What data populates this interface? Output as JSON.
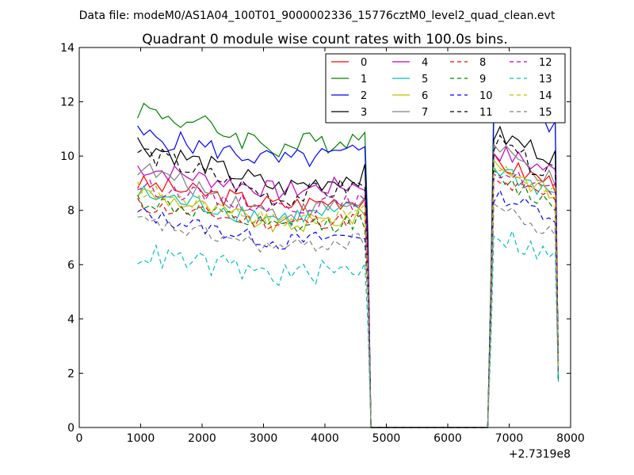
{
  "figure_header": "Data file: modeM0/AS1A04_100T01_9000002336_15776cztM0_level2_quad_clean.evt",
  "chart_data": {
    "type": "line",
    "title": "Quadrant 0 module wise count rates with 100.0s bins.",
    "xlabel": "",
    "ylabel": "",
    "x_offset_label": "+2.7319e8",
    "xlim": [
      0,
      8000
    ],
    "ylim": [
      0,
      14
    ],
    "xticks": [
      0,
      1000,
      2000,
      3000,
      4000,
      5000,
      6000,
      7000,
      8000
    ],
    "yticks": [
      0,
      2,
      4,
      6,
      8,
      10,
      12,
      14
    ],
    "grid": false,
    "legend_position": "top-right",
    "series": [
      {
        "name": "0",
        "color": "#ff0000",
        "dash": "solid",
        "level_a": 9.0,
        "level_b": 8.2,
        "level_c": 9.8,
        "level_d": 9.0,
        "noise": 0.35
      },
      {
        "name": "1",
        "color": "#008000",
        "dash": "solid",
        "level_a": 11.8,
        "level_b": 10.3,
        "level_c": 12.7,
        "level_d": 11.2,
        "noise": 0.45
      },
      {
        "name": "2",
        "color": "#0000ff",
        "dash": "solid",
        "level_a": 10.8,
        "level_b": 9.8,
        "level_c": 11.8,
        "level_d": 11.0,
        "noise": 0.4
      },
      {
        "name": "3",
        "color": "#000000",
        "dash": "solid",
        "level_a": 10.5,
        "level_b": 8.8,
        "level_c": 10.8,
        "level_d": 10.0,
        "noise": 0.4
      },
      {
        "name": "4",
        "color": "#bf00bf",
        "dash": "solid",
        "level_a": 9.6,
        "level_b": 8.7,
        "level_c": 10.2,
        "level_d": 9.4,
        "noise": 0.35
      },
      {
        "name": "5",
        "color": "#00bfbf",
        "dash": "solid",
        "level_a": 8.6,
        "level_b": 7.7,
        "level_c": 9.6,
        "level_d": 8.6,
        "noise": 0.4
      },
      {
        "name": "6",
        "color": "#bfbf00",
        "dash": "solid",
        "level_a": 8.7,
        "level_b": 7.4,
        "level_c": 9.8,
        "level_d": 8.5,
        "noise": 0.35
      },
      {
        "name": "7",
        "color": "#808080",
        "dash": "solid",
        "level_a": 9.6,
        "level_b": 7.8,
        "level_c": 10.3,
        "level_d": 9.0,
        "noise": 0.35
      },
      {
        "name": "8",
        "color": "#ff0000",
        "dash": "dash",
        "level_a": 8.2,
        "level_b": 7.5,
        "level_c": 9.0,
        "level_d": 8.5,
        "noise": 0.3
      },
      {
        "name": "9",
        "color": "#008000",
        "dash": "dash",
        "level_a": 8.4,
        "level_b": 7.3,
        "level_c": 9.2,
        "level_d": 8.2,
        "noise": 0.35
      },
      {
        "name": "10",
        "color": "#0000ff",
        "dash": "dash",
        "level_a": 7.9,
        "level_b": 6.8,
        "level_c": 8.6,
        "level_d": 7.8,
        "noise": 0.3
      },
      {
        "name": "11",
        "color": "#000000",
        "dash": "dash",
        "level_a": 10.2,
        "level_b": 8.4,
        "level_c": 10.5,
        "level_d": 9.2,
        "noise": 0.4
      },
      {
        "name": "12",
        "color": "#bf00bf",
        "dash": "dash",
        "level_a": 8.9,
        "level_b": 8.1,
        "level_c": 9.5,
        "level_d": 8.7,
        "noise": 0.3
      },
      {
        "name": "13",
        "color": "#00bfbf",
        "dash": "dash",
        "level_a": 6.4,
        "level_b": 5.6,
        "level_c": 7.2,
        "level_d": 6.2,
        "noise": 0.45
      },
      {
        "name": "14",
        "color": "#bfbf00",
        "dash": "dash",
        "level_a": 8.8,
        "level_b": 7.6,
        "level_c": 9.6,
        "level_d": 8.8,
        "noise": 0.3
      },
      {
        "name": "15",
        "color": "#808080",
        "dash": "dash",
        "level_a": 7.6,
        "level_b": 6.6,
        "level_c": 8.2,
        "level_d": 7.0,
        "noise": 0.3
      }
    ]
  }
}
